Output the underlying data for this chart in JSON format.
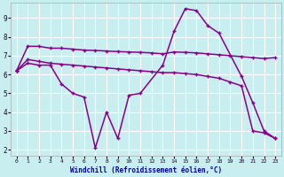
{
  "background_color": "#c8eef0",
  "grid_color": "#ffffff",
  "xlabel": "Windchill (Refroidissement éolien,°C)",
  "xlim": [
    -0.5,
    23.5
  ],
  "ylim": [
    1.7,
    9.8
  ],
  "yticks": [
    2,
    3,
    4,
    5,
    6,
    7,
    8,
    9
  ],
  "xticks": [
    0,
    1,
    2,
    3,
    4,
    5,
    6,
    7,
    8,
    9,
    10,
    11,
    12,
    13,
    14,
    15,
    16,
    17,
    18,
    19,
    20,
    21,
    22,
    23
  ],
  "series": [
    {
      "x": [
        0,
        1,
        2,
        3,
        4,
        5,
        6,
        7,
        8,
        9,
        10,
        11,
        13,
        14,
        15,
        16,
        17,
        18,
        20,
        21,
        22,
        23
      ],
      "y": [
        6.2,
        6.6,
        6.5,
        6.5,
        5.5,
        5.0,
        4.8,
        2.1,
        4.0,
        2.6,
        4.9,
        5.0,
        6.5,
        8.3,
        9.5,
        9.4,
        8.6,
        8.2,
        5.9,
        4.5,
        3.0,
        2.6
      ],
      "color": "#880088",
      "lw": 1.1
    },
    {
      "x": [
        0,
        1,
        2,
        3,
        4,
        5,
        6,
        7,
        8,
        9,
        10,
        11,
        12,
        13,
        14,
        15,
        16,
        17,
        18,
        19,
        20,
        21,
        22,
        23
      ],
      "y": [
        6.2,
        7.5,
        7.5,
        7.4,
        7.4,
        7.35,
        7.3,
        7.28,
        7.25,
        7.22,
        7.2,
        7.18,
        7.15,
        7.1,
        7.2,
        7.18,
        7.15,
        7.1,
        7.05,
        7.0,
        6.95,
        6.9,
        6.85,
        6.9
      ],
      "color": "#880088",
      "lw": 1.1
    },
    {
      "x": [
        0,
        1,
        2,
        3,
        4,
        5,
        6,
        7,
        8,
        9,
        10,
        11,
        12,
        13,
        14,
        15,
        16,
        17,
        18,
        19,
        20,
        21,
        22,
        23
      ],
      "y": [
        6.2,
        6.8,
        6.7,
        6.6,
        6.55,
        6.5,
        6.45,
        6.4,
        6.35,
        6.3,
        6.25,
        6.2,
        6.15,
        6.1,
        6.1,
        6.05,
        6.0,
        5.9,
        5.8,
        5.6,
        5.4,
        3.0,
        2.9,
        2.6
      ],
      "color": "#880088",
      "lw": 1.1
    }
  ],
  "marker": "+",
  "markersize": 3.5,
  "markeredgewidth": 1.0
}
